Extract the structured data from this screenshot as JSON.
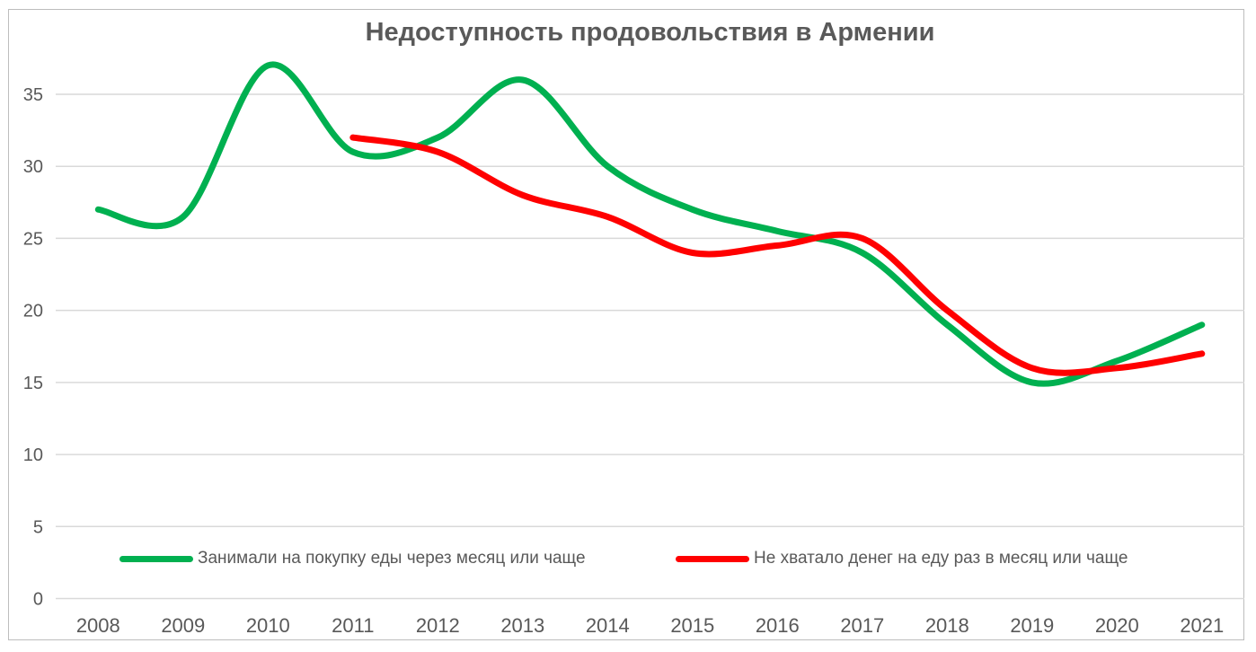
{
  "chart": {
    "title": "Недоступность продовольствия в Армении"
  },
  "chart_data": {
    "type": "line",
    "title": "Недоступность продовольствия в Армении",
    "x": [
      2008,
      2009,
      2010,
      2011,
      2012,
      2013,
      2014,
      2015,
      2016,
      2017,
      2018,
      2019,
      2020,
      2021
    ],
    "series": [
      {
        "id": "borrowed-money-for-food",
        "name": "Занимали на покупку еды через месяц или чаще",
        "color": "#00B050",
        "values": [
          27,
          26.5,
          37,
          31,
          32,
          36,
          30,
          27,
          25.5,
          24,
          19,
          15,
          16.5,
          19
        ]
      },
      {
        "id": "not-enough-money-for-food",
        "name": "Не хватало денег на еду раз в месяц или чаще",
        "color": "#FF0000",
        "values": [
          null,
          null,
          null,
          32,
          31,
          28,
          26.5,
          24,
          24.5,
          25,
          20,
          16,
          16,
          17
        ]
      }
    ],
    "ylim": [
      0,
      37.5
    ],
    "yticks": [
      0,
      5,
      10,
      15,
      20,
      25,
      30,
      35
    ],
    "grid": true,
    "smooth": true,
    "legend_position": "bottom",
    "colors": {
      "text": "#595959",
      "gridline": "#D9D9D9",
      "border": "#BDBDBD",
      "background": "#FFFFFF"
    }
  }
}
